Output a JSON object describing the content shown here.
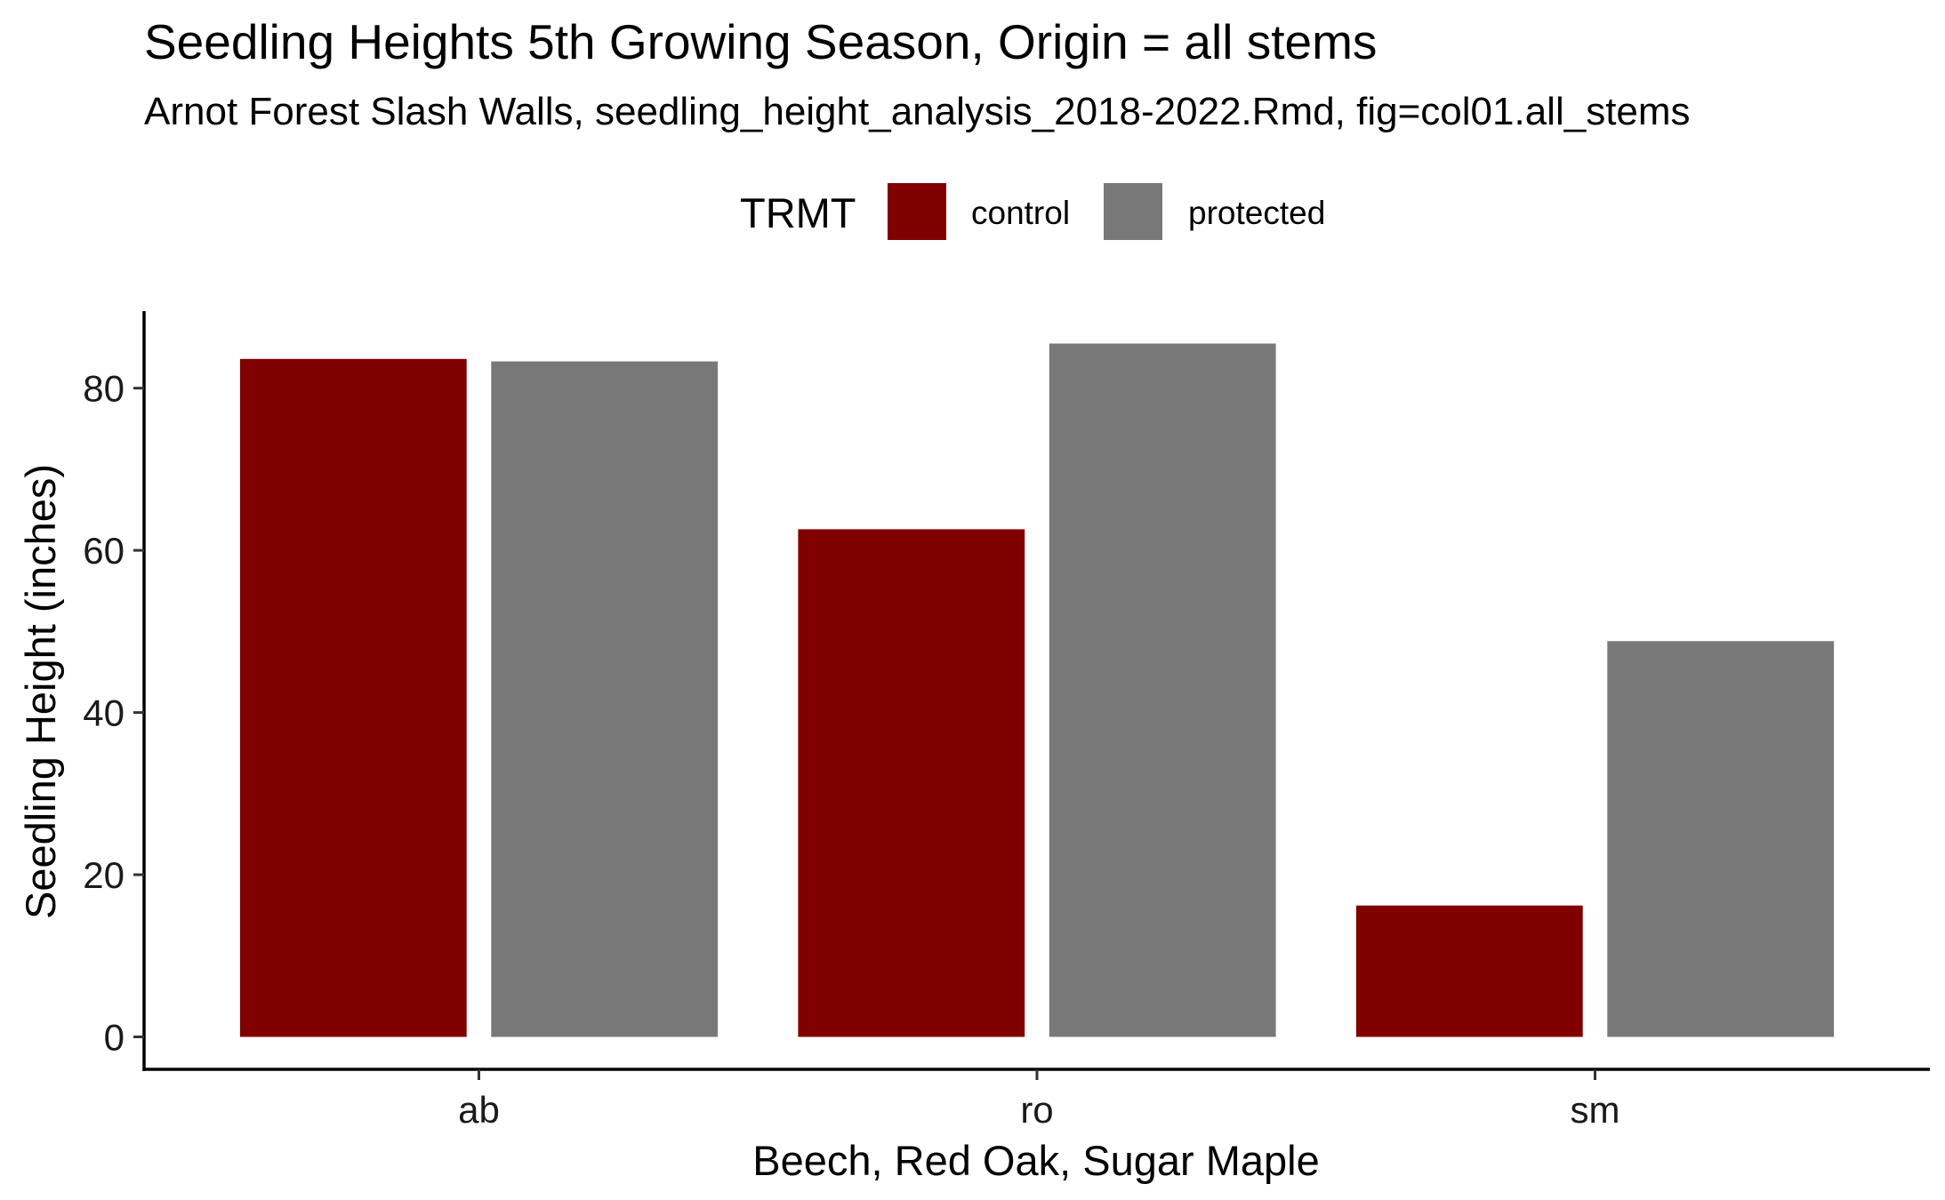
{
  "chart_data": {
    "type": "bar",
    "title": "Seedling Heights 5th Growing Season, Origin = all stems",
    "subtitle": "Arnot Forest Slash Walls, seedling_height_analysis_2018-2022.Rmd, fig=col01.all_stems",
    "xlabel": "Beech, Red Oak, Sugar Maple",
    "ylabel": "Seedling Height (inches)",
    "categories": [
      "ab",
      "ro",
      "sm"
    ],
    "series": [
      {
        "name": "control",
        "color": "#800000",
        "values": [
          83.6,
          62.6,
          16.2
        ]
      },
      {
        "name": "protected",
        "color": "#787878",
        "values": [
          83.3,
          85.5,
          48.8
        ]
      }
    ],
    "ylim": [
      -4,
      89.5
    ],
    "yticks": [
      0,
      20,
      40,
      60,
      80
    ],
    "grid": false,
    "legend": {
      "title": "TRMT",
      "position": "top"
    }
  }
}
